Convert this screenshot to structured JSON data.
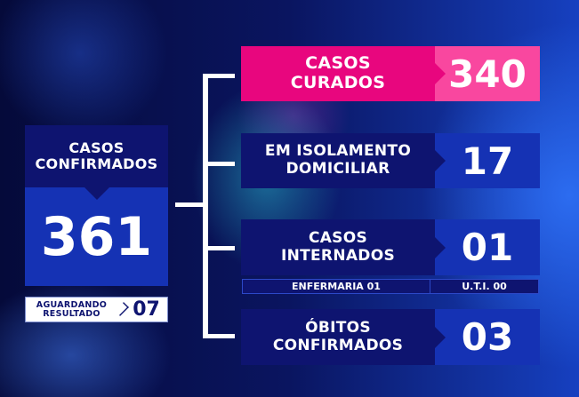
{
  "confirmados": {
    "label": "CASOS\nCONFIRMADOS",
    "value": "361"
  },
  "aguardando": {
    "label": "AGUARDANDO\nRESULTADO",
    "value": "07"
  },
  "curados": {
    "label": "CASOS\nCURADOS",
    "value": "340"
  },
  "isolamento": {
    "label": "EM ISOLAMENTO\nDOMICILIAR",
    "value": "17"
  },
  "internados": {
    "label": "CASOS\nINTERNADOS",
    "value": "01",
    "enfermaria": "ENFERMARIA 01",
    "uti": "U.T.I. 00"
  },
  "obitos": {
    "label": "ÓBITOS\nCONFIRMADOS",
    "value": "03"
  },
  "colors": {
    "navy": "#0e1470",
    "blue": "#1532b4",
    "pink": "#e8067e",
    "pink_light": "#f9479f"
  }
}
